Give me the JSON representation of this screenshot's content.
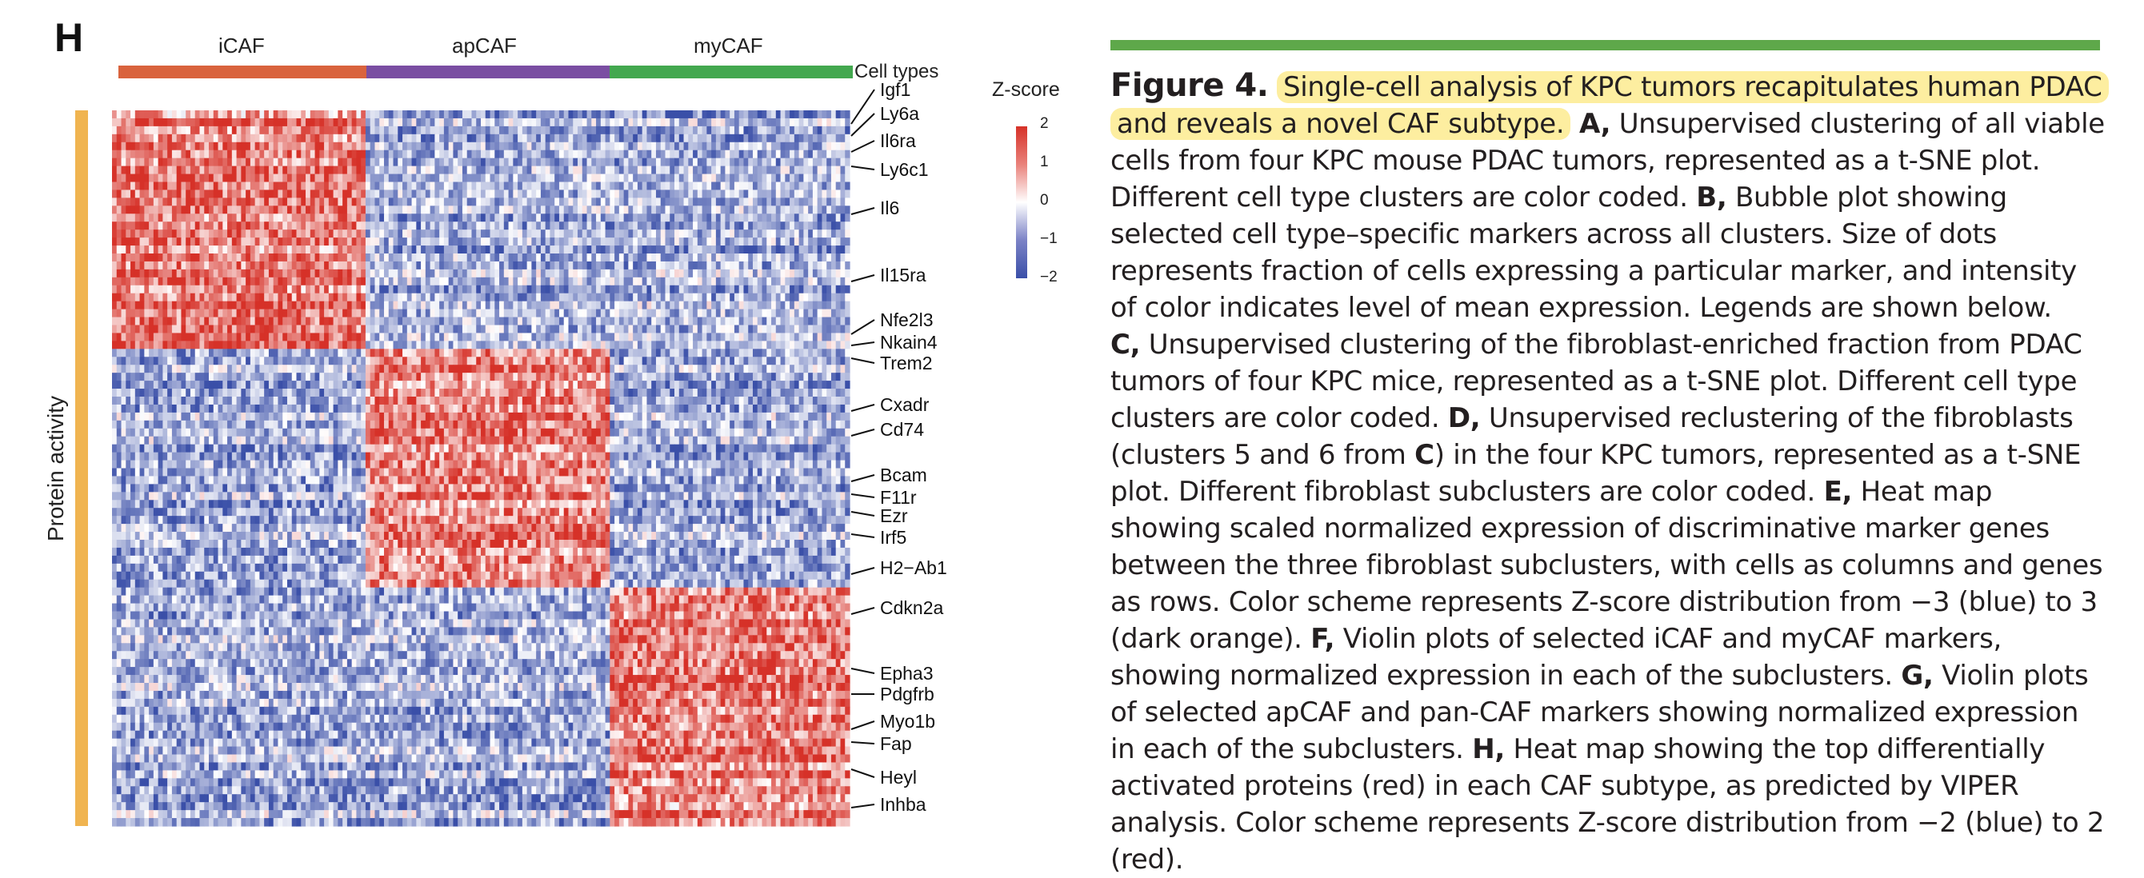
{
  "panel_letter": "H",
  "cell_types": [
    {
      "label": "iCAF",
      "color": "#d9633d"
    },
    {
      "label": "apCAF",
      "color": "#7a4ea2"
    },
    {
      "label": "myCAF",
      "color": "#43a84f"
    }
  ],
  "cell_types_caption": "Cell types",
  "row_annotation": "Protein activity",
  "legend": {
    "title": "Z-score",
    "ticks": [
      "2",
      "1",
      "0",
      "−1",
      "−2"
    ]
  },
  "colors": {
    "high": "#d63128",
    "mid": "#ffffff",
    "low": "#3a4fa8",
    "row_bar": "#f0b450",
    "rule": "#5ea84a",
    "highlight": "#fdeea0"
  },
  "genes": [
    {
      "name": "Igf1",
      "block": 0
    },
    {
      "name": "Ly6a",
      "block": 0
    },
    {
      "name": "Il6ra",
      "block": 0
    },
    {
      "name": "Ly6c1",
      "block": 0
    },
    {
      "name": "Il6",
      "block": 0
    },
    {
      "name": "Il15ra",
      "block": 0
    },
    {
      "name": "Nfe2l3",
      "block": 0
    },
    {
      "name": "Nkain4",
      "block": 1
    },
    {
      "name": "Trem2",
      "block": 1
    },
    {
      "name": "Cxadr",
      "block": 1
    },
    {
      "name": "Cd74",
      "block": 1
    },
    {
      "name": "Bcam",
      "block": 1
    },
    {
      "name": "F11r",
      "block": 1
    },
    {
      "name": "Ezr",
      "block": 1
    },
    {
      "name": "Irf5",
      "block": 1
    },
    {
      "name": "H2−Ab1",
      "block": 1
    },
    {
      "name": "Cdkn2a",
      "block": 2
    },
    {
      "name": "Epha3",
      "block": 2
    },
    {
      "name": "Pdgfrb",
      "block": 2
    },
    {
      "name": "Myo1b",
      "block": 2
    },
    {
      "name": "Fap",
      "block": 2
    },
    {
      "name": "Heyl",
      "block": 2
    },
    {
      "name": "Inhba",
      "block": 2
    }
  ],
  "caption": {
    "figure_label": "Figure 4.",
    "title": "Single-cell analysis of KPC tumors recapitulates human PDAC and reveals a novel CAF subtype.",
    "parts": [
      {
        "label": "A,",
        "text": " Unsupervised clustering of all viable cells from four KPC mouse PDAC tumors, represented as a t-SNE plot. Different cell type clusters are color coded. "
      },
      {
        "label": "B,",
        "text": " Bubble plot showing selected cell type–specific markers across all clusters. Size of dots represents fraction of cells expressing a particular marker, and intensity of color indicates level of mean expression. Legends are shown below. "
      },
      {
        "label": "C,",
        "text": " Unsupervised clustering of the fibroblast-enriched fraction from PDAC tumors of four KPC mice, represented as a t-SNE plot. Different cell type clusters are color coded. "
      },
      {
        "label": "D,",
        "text": " Unsupervised reclustering of the fibroblasts (clusters 5 and 6 from "
      },
      {
        "label": "C",
        "text": ") in the four KPC tumors, represented as a t-SNE plot. Different fibroblast subclusters are color coded. "
      },
      {
        "label": "E,",
        "text": " Heat map showing scaled normalized expression of discriminative marker genes between the three fibroblast subclusters, with cells as columns and genes as rows. Color scheme represents Z-score distribution from −3 (blue) to 3 (dark orange). "
      },
      {
        "label": "F,",
        "text": " Violin plots of selected iCAF and myCAF markers, showing normalized expression in each of the subclusters. "
      },
      {
        "label": "G,",
        "text": " Violin plots of selected apCAF and pan-CAF markers showing normalized expression in each of the subclusters. "
      },
      {
        "label": "H,",
        "text": " Heat map showing the top differentially activated proteins (red) in each CAF subtype, as predicted by VIPER analysis. Color scheme represents Z-score distribution from −2 (blue) to 2 (red)."
      }
    ]
  }
}
